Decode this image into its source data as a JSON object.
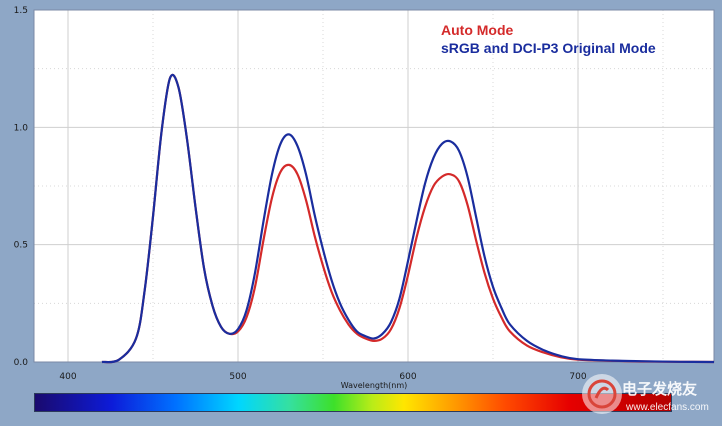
{
  "chart_data": {
    "type": "line",
    "title": "",
    "xlabel": "Wavelength(nm)",
    "ylabel": "",
    "xlim": [
      380,
      780
    ],
    "ylim": [
      0,
      1.5
    ],
    "xticks": [
      400,
      500,
      600,
      700
    ],
    "yticks": [
      0.0,
      0.5,
      1.0,
      1.5
    ],
    "xtick_labels": [
      "400",
      "500",
      "600",
      "700"
    ],
    "ytick_labels": [
      "0.0",
      "0.5",
      "1.0",
      "1.5"
    ],
    "grid": true,
    "legend_position": "top-right",
    "series": [
      {
        "name": "Auto Mode",
        "color": "#d42a2a",
        "x": [
          420,
          430,
          440,
          445,
          450,
          455,
          460,
          465,
          470,
          475,
          480,
          485,
          490,
          495,
          500,
          505,
          510,
          515,
          520,
          525,
          530,
          535,
          540,
          545,
          550,
          555,
          560,
          565,
          570,
          575,
          580,
          585,
          590,
          595,
          600,
          605,
          610,
          615,
          620,
          625,
          630,
          635,
          640,
          645,
          650,
          655,
          660,
          670,
          680,
          690,
          700,
          720,
          740,
          760,
          780
        ],
        "y": [
          0,
          0.01,
          0.1,
          0.3,
          0.62,
          0.98,
          1.21,
          1.17,
          0.95,
          0.66,
          0.4,
          0.24,
          0.15,
          0.12,
          0.13,
          0.19,
          0.32,
          0.52,
          0.7,
          0.81,
          0.84,
          0.8,
          0.69,
          0.54,
          0.41,
          0.3,
          0.22,
          0.16,
          0.12,
          0.1,
          0.09,
          0.1,
          0.14,
          0.23,
          0.37,
          0.53,
          0.66,
          0.75,
          0.79,
          0.8,
          0.77,
          0.67,
          0.52,
          0.38,
          0.27,
          0.19,
          0.13,
          0.07,
          0.04,
          0.02,
          0.01,
          0.005,
          0.002,
          0.001,
          0
        ]
      },
      {
        "name": "sRGB and DCI-P3 Original Mode",
        "color": "#1a2d9e",
        "x": [
          420,
          430,
          440,
          445,
          450,
          455,
          460,
          465,
          470,
          475,
          480,
          485,
          490,
          495,
          500,
          505,
          510,
          515,
          520,
          525,
          530,
          535,
          540,
          545,
          550,
          555,
          560,
          565,
          570,
          575,
          580,
          585,
          590,
          595,
          600,
          605,
          610,
          615,
          620,
          625,
          630,
          635,
          640,
          645,
          650,
          655,
          660,
          670,
          680,
          690,
          700,
          720,
          740,
          760,
          780
        ],
        "y": [
          0,
          0.01,
          0.1,
          0.3,
          0.62,
          0.98,
          1.21,
          1.17,
          0.95,
          0.66,
          0.4,
          0.24,
          0.15,
          0.12,
          0.14,
          0.22,
          0.38,
          0.6,
          0.8,
          0.93,
          0.97,
          0.92,
          0.8,
          0.63,
          0.48,
          0.35,
          0.25,
          0.18,
          0.13,
          0.11,
          0.1,
          0.12,
          0.17,
          0.27,
          0.43,
          0.6,
          0.76,
          0.87,
          0.93,
          0.94,
          0.9,
          0.79,
          0.62,
          0.45,
          0.32,
          0.23,
          0.16,
          0.09,
          0.05,
          0.025,
          0.012,
          0.006,
          0.003,
          0.001,
          0
        ]
      }
    ]
  },
  "watermark": {
    "text_cn": "电子发烧友",
    "text_url": "www.elecfans.com"
  }
}
